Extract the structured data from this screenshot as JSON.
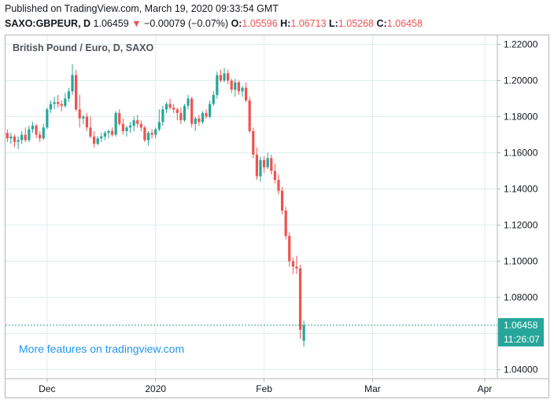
{
  "header": {
    "published": "Published on TradingView.com, March 19, 2020 09:33:54 GMT",
    "symbol": "SAXO:GBPEUR, D",
    "last": "1.06459",
    "arrow": "▼",
    "change": "−0.00079 (−0.07%)",
    "o_label": "O:",
    "o_value": "1.05596",
    "h_label": "H:",
    "h_value": "1.06713",
    "l_label": "L:",
    "l_value": "1.05268",
    "c_label": "C:",
    "c_value": "1.06458"
  },
  "watermark": "More features on tradingview.com",
  "colors": {
    "up": "#26a69a",
    "down": "#ef5350",
    "grid": "#e1ecf2",
    "text": "#131722",
    "watermark": "#2196f3"
  },
  "chart_data": {
    "type": "candlestick",
    "title": "British Pound / Euro, D, SAXO",
    "ylim": [
      1.035,
      1.225
    ],
    "y_ticks": [
      1.04,
      1.06,
      1.08,
      1.1,
      1.12,
      1.14,
      1.16,
      1.18,
      1.2,
      1.22
    ],
    "y_tick_labels": [
      "1.04000",
      "1.06000",
      "1.08000",
      "1.10000",
      "1.12000",
      "1.14000",
      "1.16000",
      "1.18000",
      "1.20000",
      "1.22000"
    ],
    "x_ticks": [
      {
        "label": "Dec",
        "index": 11
      },
      {
        "label": "2020",
        "index": 41
      },
      {
        "label": "Feb",
        "index": 71
      },
      {
        "label": "Mar",
        "index": 101
      },
      {
        "label": "Apr",
        "index": 132
      }
    ],
    "x_slots": 136,
    "last_price_label": "1.06458",
    "countdown_label": "11:26:07",
    "last_price": 1.06458,
    "candles": [
      [
        1.171,
        1.173,
        1.166,
        1.168
      ],
      [
        1.168,
        1.171,
        1.165,
        1.169
      ],
      [
        1.169,
        1.17,
        1.163,
        1.166
      ],
      [
        1.166,
        1.169,
        1.162,
        1.167
      ],
      [
        1.167,
        1.172,
        1.165,
        1.17
      ],
      [
        1.17,
        1.174,
        1.166,
        1.167
      ],
      [
        1.167,
        1.175,
        1.166,
        1.173
      ],
      [
        1.173,
        1.177,
        1.171,
        1.175
      ],
      [
        1.175,
        1.176,
        1.168,
        1.17
      ],
      [
        1.17,
        1.172,
        1.166,
        1.168
      ],
      [
        1.168,
        1.176,
        1.167,
        1.174
      ],
      [
        1.174,
        1.185,
        1.173,
        1.184
      ],
      [
        1.184,
        1.189,
        1.182,
        1.187
      ],
      [
        1.187,
        1.191,
        1.184,
        1.188
      ],
      [
        1.188,
        1.192,
        1.185,
        1.187
      ],
      [
        1.187,
        1.189,
        1.183,
        1.186
      ],
      [
        1.186,
        1.193,
        1.185,
        1.19
      ],
      [
        1.19,
        1.196,
        1.188,
        1.194
      ],
      [
        1.194,
        1.209,
        1.192,
        1.203
      ],
      [
        1.203,
        1.206,
        1.183,
        1.184
      ],
      [
        1.184,
        1.192,
        1.174,
        1.179
      ],
      [
        1.179,
        1.181,
        1.176,
        1.18
      ],
      [
        1.18,
        1.182,
        1.172,
        1.174
      ],
      [
        1.174,
        1.18,
        1.168,
        1.169
      ],
      [
        1.169,
        1.172,
        1.163,
        1.165
      ],
      [
        1.165,
        1.169,
        1.164,
        1.168
      ],
      [
        1.168,
        1.171,
        1.166,
        1.169
      ],
      [
        1.169,
        1.172,
        1.167,
        1.171
      ],
      [
        1.171,
        1.173,
        1.168,
        1.172
      ],
      [
        1.172,
        1.174,
        1.169,
        1.17
      ],
      [
        1.17,
        1.183,
        1.169,
        1.182
      ],
      [
        1.182,
        1.184,
        1.175,
        1.176
      ],
      [
        1.176,
        1.179,
        1.17,
        1.172
      ],
      [
        1.172,
        1.175,
        1.169,
        1.174
      ],
      [
        1.174,
        1.177,
        1.171,
        1.175
      ],
      [
        1.175,
        1.18,
        1.172,
        1.178
      ],
      [
        1.178,
        1.181,
        1.174,
        1.176
      ],
      [
        1.176,
        1.178,
        1.172,
        1.174
      ],
      [
        1.174,
        1.175,
        1.166,
        1.167
      ],
      [
        1.167,
        1.172,
        1.164,
        1.171
      ],
      [
        1.171,
        1.173,
        1.168,
        1.17
      ],
      [
        1.17,
        1.174,
        1.168,
        1.173
      ],
      [
        1.173,
        1.184,
        1.172,
        1.177
      ],
      [
        1.177,
        1.186,
        1.175,
        1.184
      ],
      [
        1.184,
        1.188,
        1.182,
        1.187
      ],
      [
        1.187,
        1.19,
        1.184,
        1.185
      ],
      [
        1.185,
        1.187,
        1.182,
        1.184
      ],
      [
        1.184,
        1.185,
        1.178,
        1.182
      ],
      [
        1.182,
        1.185,
        1.176,
        1.178
      ],
      [
        1.178,
        1.187,
        1.177,
        1.186
      ],
      [
        1.186,
        1.192,
        1.184,
        1.19
      ],
      [
        1.19,
        1.191,
        1.174,
        1.176
      ],
      [
        1.176,
        1.18,
        1.172,
        1.179
      ],
      [
        1.179,
        1.181,
        1.175,
        1.177
      ],
      [
        1.177,
        1.183,
        1.176,
        1.182
      ],
      [
        1.182,
        1.184,
        1.179,
        1.18
      ],
      [
        1.18,
        1.189,
        1.179,
        1.187
      ],
      [
        1.187,
        1.194,
        1.186,
        1.192
      ],
      [
        1.192,
        1.205,
        1.19,
        1.203
      ],
      [
        1.203,
        1.206,
        1.199,
        1.2
      ],
      [
        1.2,
        1.207,
        1.199,
        1.204
      ],
      [
        1.204,
        1.206,
        1.198,
        1.2
      ],
      [
        1.2,
        1.201,
        1.193,
        1.195
      ],
      [
        1.195,
        1.201,
        1.191,
        1.199
      ],
      [
        1.199,
        1.2,
        1.192,
        1.194
      ],
      [
        1.194,
        1.197,
        1.191,
        1.196
      ],
      [
        1.196,
        1.199,
        1.188,
        1.189
      ],
      [
        1.189,
        1.191,
        1.171,
        1.172
      ],
      [
        1.172,
        1.174,
        1.157,
        1.159
      ],
      [
        1.159,
        1.163,
        1.145,
        1.147
      ],
      [
        1.147,
        1.158,
        1.144,
        1.156
      ],
      [
        1.156,
        1.158,
        1.149,
        1.152
      ],
      [
        1.152,
        1.16,
        1.151,
        1.157
      ],
      [
        1.157,
        1.159,
        1.148,
        1.15
      ],
      [
        1.15,
        1.154,
        1.143,
        1.145
      ],
      [
        1.145,
        1.148,
        1.137,
        1.139
      ],
      [
        1.139,
        1.141,
        1.126,
        1.128
      ],
      [
        1.128,
        1.13,
        1.112,
        1.114
      ],
      [
        1.114,
        1.116,
        1.097,
        1.1
      ],
      [
        1.1,
        1.102,
        1.093,
        1.097
      ],
      [
        1.097,
        1.103,
        1.093,
        1.096
      ],
      [
        1.096,
        1.098,
        1.057,
        1.062
      ],
      [
        1.05596,
        1.06713,
        1.05268,
        1.06458
      ]
    ]
  }
}
